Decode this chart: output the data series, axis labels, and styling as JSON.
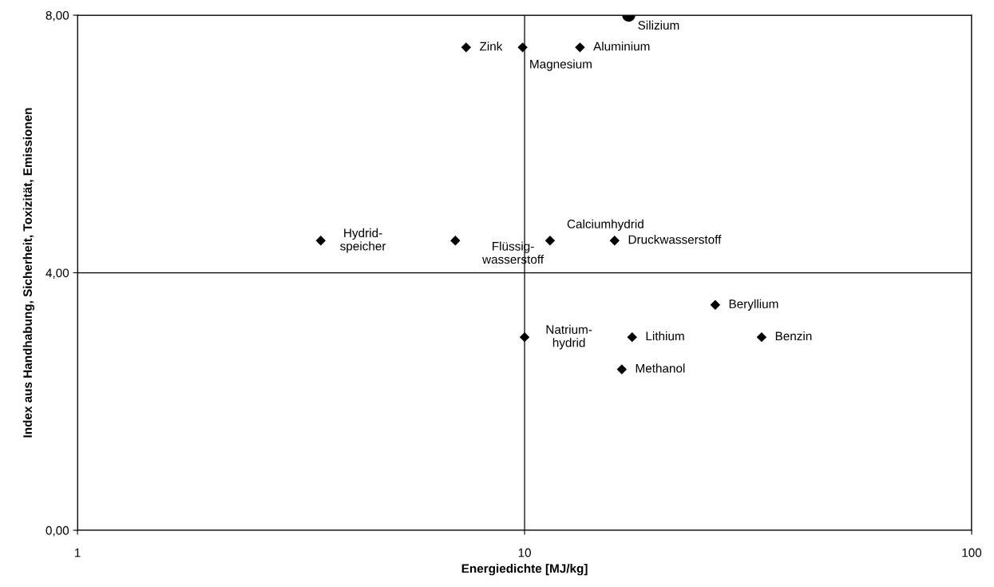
{
  "chart_data": {
    "type": "scatter",
    "xlabel": "Energiedichte [MJ/kg]",
    "ylabel": "Index aus Handhabung, Sicherheit, Toxizität, Emissionen",
    "log": "x",
    "xlim": [
      1,
      100
    ],
    "xticks": [
      1,
      10,
      100
    ],
    "ylim": [
      0,
      8
    ],
    "yticks": [
      {
        "value": 0,
        "label": "0,00"
      },
      {
        "value": 4,
        "label": "4,00"
      },
      {
        "value": 8,
        "label": "8,00"
      }
    ],
    "grid": true,
    "series": [
      {
        "color": "#000000",
        "marker": "diamond",
        "x": [
          7.4,
          9.9,
          13.3,
          3.5,
          7.0,
          11.4,
          15.9,
          26.7,
          10,
          17.4,
          33.9,
          16.5
        ],
        "values": [
          7.5,
          7.5,
          7.5,
          4.5,
          4.5,
          4.5,
          4.5,
          3.5,
          3.0,
          3.0,
          3.0,
          2.5
        ]
      },
      {
        "color": "#000000",
        "marker": "circle",
        "x": [
          17.1
        ],
        "values": [
          8.0
        ]
      }
    ],
    "annotations": [
      {
        "text": "Zink",
        "x": 7.4,
        "y": 7.5
      },
      {
        "text": "Magnesium",
        "x": 9.9,
        "y": 7.5
      },
      {
        "text": "Aluminium",
        "x": 13.3,
        "y": 7.5
      },
      {
        "text": "Hydrid-\nspeicher",
        "x": 3.5,
        "y": 4.5
      },
      {
        "text": "Flüssig-\nwasserstoff",
        "x": 7.0,
        "y": 4.5
      },
      {
        "text": "Calciumhydrid",
        "x": 11.4,
        "y": 4.5
      },
      {
        "text": "Druckwasserstoff",
        "x": 15.9,
        "y": 4.5
      },
      {
        "text": "Beryllium",
        "x": 26.7,
        "y": 3.5
      },
      {
        "text": "Natrium-\nhydrid",
        "x": 10,
        "y": 3.0
      },
      {
        "text": "Lithium",
        "x": 17.4,
        "y": 3.0
      },
      {
        "text": "Benzin",
        "x": 33.9,
        "y": 3.0
      },
      {
        "text": "Methanol",
        "x": 16.5,
        "y": 2.5
      },
      {
        "text": "Silizium",
        "x": 17.1,
        "y": 8.0
      }
    ]
  }
}
